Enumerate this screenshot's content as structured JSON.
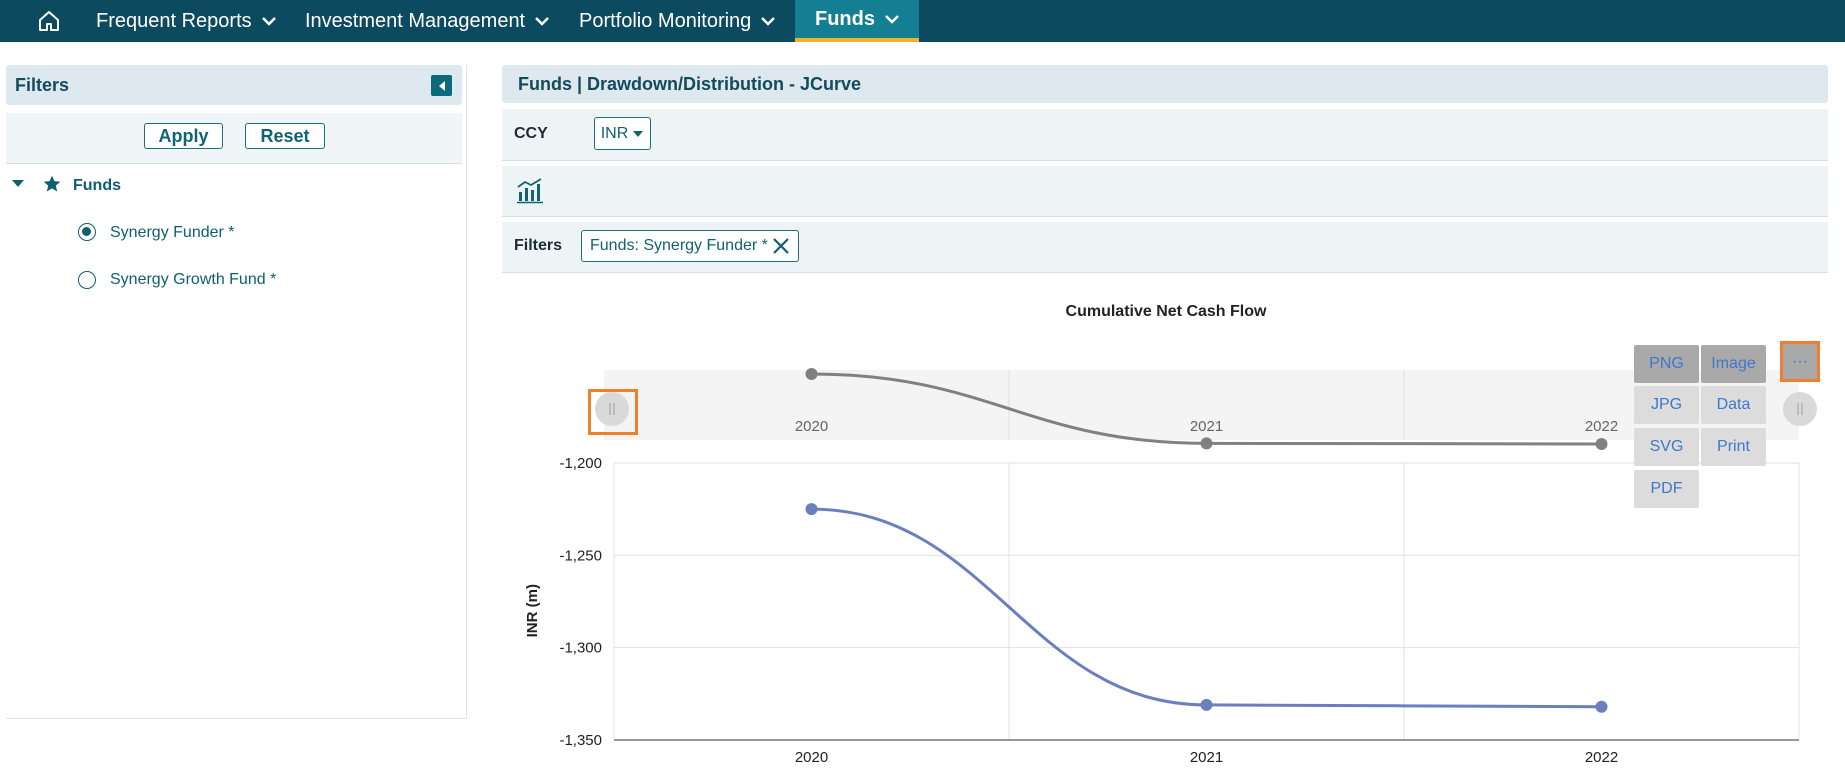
{
  "nav": {
    "items": [
      "Frequent Reports",
      "Investment Management",
      "Portfolio Monitoring",
      "Funds"
    ],
    "active": "Funds"
  },
  "filters_panel": {
    "title": "Filters",
    "apply_label": "Apply",
    "reset_label": "Reset",
    "tree": {
      "root_label": "Funds",
      "options": [
        {
          "label": "Synergy Funder *",
          "checked": true
        },
        {
          "label": "Synergy Growth Fund *",
          "checked": false
        }
      ]
    }
  },
  "report": {
    "title": "Funds | Drawdown/Distribution - JCurve",
    "ccy_label": "CCY",
    "ccy_value": "INR",
    "filters_label": "Filters",
    "filter_chip": "Funds: Synergy Funder *"
  },
  "export_menu": {
    "items": [
      "PNG",
      "Image",
      "JPG",
      "Data",
      "SVG",
      "Print",
      "PDF"
    ],
    "more_label": "···"
  },
  "colors": {
    "nav_bg": "#0c4a5f",
    "accent": "#f0b429",
    "series_main": "#6b7fbf",
    "series_scrollbar": "#808080",
    "highlight": "#f07f2d"
  },
  "chart_data": {
    "type": "line",
    "title": "Cumulative Net Cash Flow",
    "ylabel": "INR (m)",
    "xlabel": "",
    "categories": [
      "2020",
      "2021",
      "2022"
    ],
    "series": [
      {
        "values": [
          -1225,
          -1331,
          -1332
        ]
      }
    ],
    "ylim": [
      -1350,
      -1200
    ],
    "yticks": [
      "-1,200",
      "-1,250",
      "-1,300",
      "-1,350"
    ],
    "scrollbar_ticks": [
      "2020",
      "2021",
      "2022"
    ],
    "grid": true,
    "legend": "none"
  }
}
